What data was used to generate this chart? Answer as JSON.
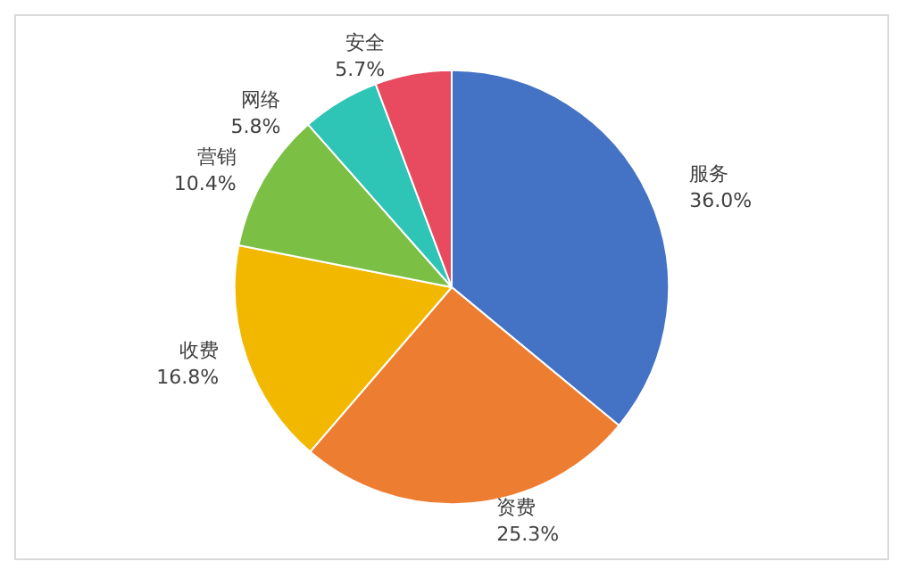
{
  "chart_data": {
    "type": "pie",
    "categories": [
      "服务",
      "资费",
      "收费",
      "营销",
      "网络",
      "安全"
    ],
    "values": [
      36.0,
      25.3,
      16.8,
      10.4,
      5.8,
      5.7
    ],
    "colors": [
      "#4472c4",
      "#ed7d31",
      "#f2b800",
      "#7bbf44",
      "#2ec4b6",
      "#e84a5f"
    ],
    "value_labels": [
      "36.0%",
      "25.3%",
      "16.8%",
      "10.4%",
      "5.8%",
      "5.7%"
    ]
  }
}
